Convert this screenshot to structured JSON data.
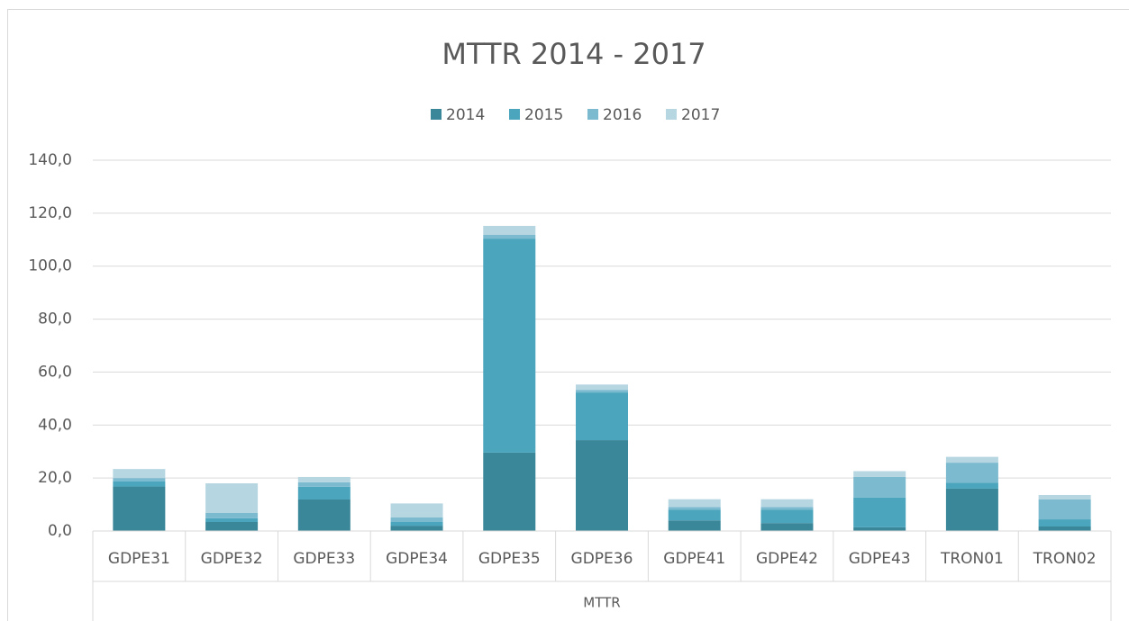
{
  "chart_data": {
    "type": "stacked_bar",
    "title": "MTTR 2014 - 2017",
    "group_label": "MTTR",
    "categories": [
      "GDPE31",
      "GDPE32",
      "GDPE33",
      "GDPE34",
      "GDPE35",
      "GDPE36",
      "GDPE41",
      "GDPE42",
      "GDPE43",
      "TRON01",
      "TRON02"
    ],
    "series": [
      {
        "name": "2014",
        "color": "#3a879a",
        "values": [
          16.8,
          3.4,
          11.9,
          2.0,
          29.6,
          34.3,
          4.0,
          3.0,
          1.4,
          16.0,
          1.7
        ]
      },
      {
        "name": "2015",
        "color": "#4aa5bd",
        "values": [
          2.0,
          1.4,
          4.8,
          1.4,
          80.8,
          18.0,
          4.0,
          5.0,
          11.2,
          2.2,
          2.7
        ]
      },
      {
        "name": "2016",
        "color": "#7cbad0",
        "values": [
          1.2,
          2.0,
          1.7,
          1.7,
          1.4,
          1.0,
          1.0,
          1.0,
          7.8,
          7.6,
          7.5
        ]
      },
      {
        "name": "2017",
        "color": "#b6d6e2",
        "values": [
          3.4,
          11.2,
          2.0,
          5.3,
          3.4,
          2.0,
          3.0,
          3.0,
          2.2,
          2.2,
          1.7
        ]
      }
    ],
    "ylim": [
      0,
      140
    ],
    "yticks": [
      {
        "value": 0,
        "label": "0,0"
      },
      {
        "value": 20,
        "label": "20,0"
      },
      {
        "value": 40,
        "label": "40,0"
      },
      {
        "value": 60,
        "label": "60,0"
      },
      {
        "value": 80,
        "label": "80,0"
      },
      {
        "value": 100,
        "label": "100,0"
      },
      {
        "value": 120,
        "label": "120,0"
      },
      {
        "value": 140,
        "label": "140,0"
      }
    ],
    "grid": true,
    "legend": "top"
  }
}
